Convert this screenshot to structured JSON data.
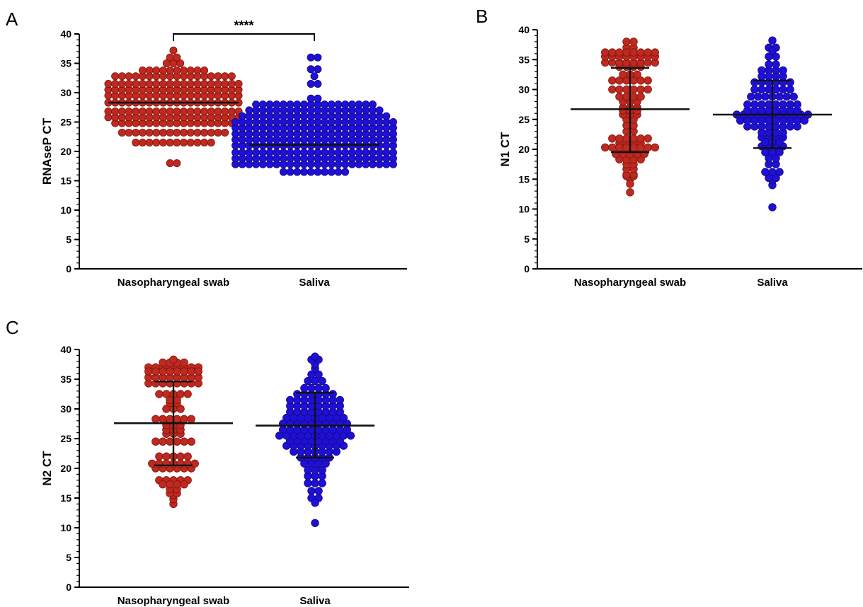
{
  "chart_data": [
    {
      "panel": "A",
      "type": "scatter",
      "subtype": "dot-plot",
      "ylabel": "RNAseP CT",
      "ylim": [
        0,
        40
      ],
      "yticks": [
        0,
        5,
        10,
        15,
        20,
        25,
        30,
        35,
        40
      ],
      "categories": [
        "Nasopharyngeal swab",
        "Saliva"
      ],
      "significance": "****",
      "series": [
        {
          "category": "Nasopharyngeal swab",
          "color": "#c0291f",
          "median": 28.3,
          "values": [
            18,
            18,
            21.5,
            21.5,
            21.5,
            21.5,
            21.5,
            21.5,
            21.5,
            21.5,
            21.5,
            21.5,
            21.5,
            21.5,
            23.2,
            23.2,
            23.2,
            23.2,
            23.2,
            23.2,
            23.2,
            23.2,
            23.2,
            23.2,
            23.2,
            23.2,
            23.2,
            23.2,
            23.2,
            23.2,
            24.8,
            24.8,
            24.8,
            24.8,
            24.8,
            24.8,
            24.8,
            24.8,
            24.8,
            24.8,
            24.8,
            24.8,
            24.8,
            24.8,
            24.8,
            24.8,
            24.8,
            24.8,
            25.8,
            25.8,
            25.8,
            25.8,
            25.8,
            25.8,
            25.8,
            25.8,
            25.8,
            25.8,
            25.8,
            25.8,
            25.8,
            25.8,
            25.8,
            25.8,
            25.8,
            25.8,
            25.8,
            25.8,
            26.8,
            26.8,
            26.8,
            26.8,
            26.8,
            26.8,
            26.8,
            26.8,
            26.8,
            26.8,
            26.8,
            26.8,
            26.8,
            26.8,
            26.8,
            26.8,
            26.8,
            26.8,
            26.8,
            26.8,
            28.3,
            28.3,
            28.3,
            28.3,
            28.3,
            28.3,
            28.3,
            28.3,
            28.3,
            28.3,
            28.3,
            28.3,
            28.3,
            28.3,
            28.3,
            28.3,
            28.3,
            28.3,
            28.3,
            28.3,
            29.5,
            29.5,
            29.5,
            29.5,
            29.5,
            29.5,
            29.5,
            29.5,
            29.5,
            29.5,
            29.5,
            29.5,
            29.5,
            29.5,
            29.5,
            29.5,
            29.5,
            29.5,
            29.5,
            29.5,
            30.5,
            30.5,
            30.5,
            30.5,
            30.5,
            30.5,
            30.5,
            30.5,
            30.5,
            30.5,
            30.5,
            30.5,
            30.5,
            30.5,
            30.5,
            30.5,
            30.5,
            30.5,
            30.5,
            30.5,
            31.5,
            31.5,
            31.5,
            31.5,
            31.5,
            31.5,
            31.5,
            31.5,
            31.5,
            31.5,
            31.5,
            31.5,
            31.5,
            31.5,
            31.5,
            31.5,
            31.5,
            31.5,
            31.5,
            31.5,
            32.8,
            32.8,
            32.8,
            32.8,
            32.8,
            32.8,
            32.8,
            32.8,
            32.8,
            32.8,
            32.8,
            32.8,
            32.8,
            32.8,
            32.8,
            32.8,
            32.8,
            32.8,
            33.8,
            33.8,
            33.8,
            33.8,
            33.8,
            33.8,
            33.8,
            33.8,
            33.8,
            33.8,
            35,
            35,
            35,
            36,
            36,
            37.2
          ]
        },
        {
          "category": "Saliva",
          "color": "#1f10d9",
          "median": 21.1,
          "values": [
            16.5,
            16.5,
            16.5,
            16.5,
            16.5,
            16.5,
            16.5,
            16.5,
            16.5,
            16.5,
            17.8,
            17.8,
            17.8,
            17.8,
            17.8,
            17.8,
            17.8,
            17.8,
            17.8,
            17.8,
            17.8,
            17.8,
            17.8,
            17.8,
            17.8,
            17.8,
            17.8,
            17.8,
            17.8,
            17.8,
            17.8,
            17.8,
            17.8,
            17.8,
            18.8,
            18.8,
            18.8,
            18.8,
            18.8,
            18.8,
            18.8,
            18.8,
            18.8,
            18.8,
            18.8,
            18.8,
            18.8,
            18.8,
            18.8,
            18.8,
            18.8,
            18.8,
            18.8,
            18.8,
            18.8,
            18.8,
            18.8,
            18.8,
            19.8,
            19.8,
            19.8,
            19.8,
            19.8,
            19.8,
            19.8,
            19.8,
            19.8,
            19.8,
            19.8,
            19.8,
            19.8,
            19.8,
            19.8,
            19.8,
            19.8,
            19.8,
            19.8,
            19.8,
            19.8,
            19.8,
            19.8,
            19.8,
            21,
            21,
            21,
            21,
            21,
            21,
            21,
            21,
            21,
            21,
            21,
            21,
            21,
            21,
            21,
            21,
            21,
            21,
            21,
            21,
            21,
            21,
            21,
            21,
            22,
            22,
            22,
            22,
            22,
            22,
            22,
            22,
            22,
            22,
            22,
            22,
            22,
            22,
            22,
            22,
            22,
            22,
            22,
            22,
            22,
            22,
            22,
            22,
            23,
            23,
            23,
            23,
            23,
            23,
            23,
            23,
            23,
            23,
            23,
            23,
            23,
            23,
            23,
            23,
            23,
            23,
            23,
            23,
            23,
            23,
            23,
            23,
            24,
            24,
            24,
            24,
            24,
            24,
            24,
            24,
            24,
            24,
            24,
            24,
            24,
            24,
            24,
            24,
            24,
            24,
            24,
            24,
            24,
            24,
            24,
            24,
            25,
            25,
            25,
            25,
            25,
            25,
            25,
            25,
            25,
            25,
            25,
            25,
            25,
            25,
            25,
            25,
            25,
            25,
            25,
            25,
            25,
            25,
            25,
            25,
            26,
            26,
            26,
            26,
            26,
            26,
            26,
            26,
            26,
            26,
            26,
            26,
            26,
            26,
            26,
            26,
            26,
            26,
            26,
            26,
            26,
            26,
            27,
            27,
            27,
            27,
            27,
            27,
            27,
            27,
            27,
            27,
            27,
            27,
            27,
            27,
            27,
            27,
            27,
            27,
            27,
            27,
            28,
            28,
            28,
            28,
            28,
            28,
            28,
            28,
            28,
            28,
            28,
            28,
            28,
            28,
            28,
            28,
            28,
            28,
            29,
            29,
            31.5,
            31.5,
            32.8,
            34,
            34,
            36,
            36
          ]
        }
      ]
    },
    {
      "panel": "B",
      "type": "scatter",
      "subtype": "dot-plot",
      "ylabel": "N1 CT",
      "ylim": [
        0,
        40
      ],
      "yticks": [
        0,
        5,
        10,
        15,
        20,
        25,
        30,
        35,
        40
      ],
      "categories": [
        "Nasopharyngeal swab",
        "Saliva"
      ],
      "series": [
        {
          "category": "Nasopharyngeal swab",
          "color": "#c0291f",
          "median": 26.7,
          "error_low": 19.5,
          "error_high": 33.6,
          "values": [
            12.8,
            14.2,
            15,
            15.5,
            15.5,
            15.8,
            15.8,
            16.7,
            16.7,
            17.5,
            17.5,
            18.3,
            18.3,
            18.3,
            18.3,
            19.2,
            19.2,
            19.2,
            19.2,
            19.2,
            20.3,
            20.3,
            20.3,
            20.3,
            20.3,
            20.3,
            20.3,
            20.3,
            21,
            21,
            21,
            21,
            21.8,
            21.8,
            21.8,
            21.8,
            21.8,
            21.8,
            23,
            23,
            24,
            24,
            25,
            25,
            25.8,
            25.8,
            25.8,
            26.5,
            26.5,
            26.5,
            27,
            27,
            27,
            28,
            28,
            28,
            28.8,
            28.8,
            28.8,
            28.8,
            30,
            30,
            30,
            30,
            30,
            30,
            31.5,
            31.5,
            31.5,
            31.5,
            31.5,
            31.5,
            32.5,
            32.5,
            32.5,
            33.8,
            33.8,
            33.8,
            33.8,
            34.5,
            34.5,
            34.5,
            34.5,
            34.5,
            34.5,
            34.5,
            34.5,
            35.5,
            35.5,
            35.5,
            35.5,
            35.5,
            35.5,
            35.5,
            35.5,
            36.2,
            36.2,
            36.2,
            36.2,
            36.2,
            36.2,
            36.2,
            36.2,
            37,
            37,
            38,
            38
          ]
        },
        {
          "category": "Saliva",
          "color": "#1f10d9",
          "median": 25.8,
          "error_low": 20.2,
          "error_high": 31.5,
          "values": [
            10.3,
            14,
            14.8,
            15.2,
            15.2,
            16.2,
            16.2,
            16.2,
            17.5,
            17.5,
            18.5,
            18.5,
            19.5,
            19.5,
            19.5,
            20.5,
            20.5,
            20.5,
            20.5,
            21.2,
            21.2,
            21.2,
            22,
            22,
            22,
            22,
            22.8,
            22.8,
            22.8,
            22.8,
            23.8,
            23.8,
            23.8,
            23.8,
            23.8,
            23.8,
            23.8,
            23.8,
            24.8,
            24.8,
            24.8,
            24.8,
            24.8,
            24.8,
            24.8,
            24.8,
            24.8,
            24.8,
            25.8,
            25.8,
            25.8,
            25.8,
            25.8,
            25.8,
            25.8,
            25.8,
            25.8,
            25.8,
            25.8,
            26.5,
            26.5,
            26.5,
            26.5,
            26.5,
            26.5,
            26.5,
            26.5,
            27.5,
            27.5,
            27.5,
            27.5,
            27.5,
            27.5,
            27.5,
            27.5,
            28.8,
            28.8,
            28.8,
            28.8,
            28.8,
            28.8,
            28.8,
            30,
            30,
            30,
            30,
            30,
            30,
            31.2,
            31.2,
            31.2,
            31.2,
            31.2,
            31.2,
            32.2,
            32.2,
            32.2,
            32.2,
            33.2,
            33.2,
            33.2,
            33.2,
            34.2,
            34.2,
            35.5,
            35.5,
            36.5,
            37,
            37,
            38.2
          ]
        }
      ]
    },
    {
      "panel": "C",
      "type": "scatter",
      "subtype": "dot-plot",
      "ylabel": "N2 CT",
      "ylim": [
        0,
        40
      ],
      "yticks": [
        0,
        5,
        10,
        15,
        20,
        25,
        30,
        35,
        40
      ],
      "categories": [
        "Nasopharyngeal swab",
        "Saliva"
      ],
      "series": [
        {
          "category": "Nasopharyngeal swab",
          "color": "#c0291f",
          "median": 27.6,
          "error_low": 20.5,
          "error_high": 34.6,
          "values": [
            14,
            14.8,
            15.5,
            15.8,
            15.8,
            16.5,
            16.5,
            17.3,
            17.3,
            17.3,
            17.3,
            18,
            18,
            18,
            18,
            18,
            20,
            20,
            20,
            20,
            20,
            20,
            20.8,
            20.8,
            20.8,
            20.8,
            20.8,
            20.8,
            20.8,
            22,
            22,
            22,
            22,
            22,
            24.5,
            24.5,
            24.5,
            24.5,
            24.5,
            24.5,
            25.8,
            25.8,
            25.8,
            26.5,
            26.5,
            26.5,
            27.3,
            27.3,
            27.3,
            28.3,
            28.3,
            28.3,
            28.3,
            28.3,
            28.3,
            30,
            30,
            30,
            31,
            31,
            31.5,
            31.5,
            32.5,
            32.5,
            32.5,
            32.5,
            32.5,
            34.3,
            34.3,
            34.3,
            34.3,
            34.3,
            34.3,
            34.3,
            34.3,
            35.3,
            35.3,
            35.3,
            35.3,
            35.3,
            35.3,
            35.3,
            35.3,
            36.3,
            36.3,
            36.3,
            36.3,
            36.3,
            36.3,
            36.3,
            36.3,
            37,
            37,
            37,
            37,
            37,
            37,
            37,
            37,
            37.8,
            37.8,
            37.8,
            37.8,
            38.3
          ]
        },
        {
          "category": "Saliva",
          "color": "#1f10d9",
          "median": 27.2,
          "error_low": 21.8,
          "error_high": 32.7,
          "values": [
            10.8,
            14.2,
            15,
            15,
            16.2,
            16.2,
            17.5,
            17.5,
            17.5,
            18.7,
            18.7,
            18.7,
            19.7,
            19.7,
            19.7,
            20.8,
            20.8,
            20.8,
            20.8,
            21.8,
            21.8,
            21.8,
            21.8,
            21.8,
            22.8,
            22.8,
            22.8,
            22.8,
            22.8,
            22.8,
            22.8,
            23.8,
            23.8,
            23.8,
            23.8,
            23.8,
            23.8,
            23.8,
            23.8,
            23.8,
            24.6,
            24.6,
            24.6,
            24.6,
            24.6,
            24.6,
            24.6,
            24.6,
            25.5,
            25.5,
            25.5,
            25.5,
            25.5,
            25.5,
            25.5,
            25.5,
            25.5,
            25.5,
            25.5,
            26.5,
            26.5,
            26.5,
            26.5,
            26.5,
            26.5,
            26.5,
            26.5,
            26.5,
            26.5,
            27.5,
            27.5,
            27.5,
            27.5,
            27.5,
            27.5,
            27.5,
            27.5,
            27.5,
            27.5,
            28.5,
            28.5,
            28.5,
            28.5,
            28.5,
            28.5,
            28.5,
            28.5,
            28.5,
            29.5,
            29.5,
            29.5,
            29.5,
            29.5,
            29.5,
            29.5,
            29.5,
            30.5,
            30.5,
            30.5,
            30.5,
            30.5,
            30.5,
            30.5,
            30.5,
            31.5,
            31.5,
            31.5,
            31.5,
            31.5,
            31.5,
            31.5,
            31.5,
            32.5,
            32.5,
            32.5,
            32.5,
            32.5,
            32.5,
            33.5,
            33.5,
            33.5,
            33.5,
            34.7,
            34.7,
            34.7,
            35.8,
            35.8,
            36.8,
            37.5,
            38.3,
            38.3,
            38.8
          ]
        }
      ]
    }
  ]
}
